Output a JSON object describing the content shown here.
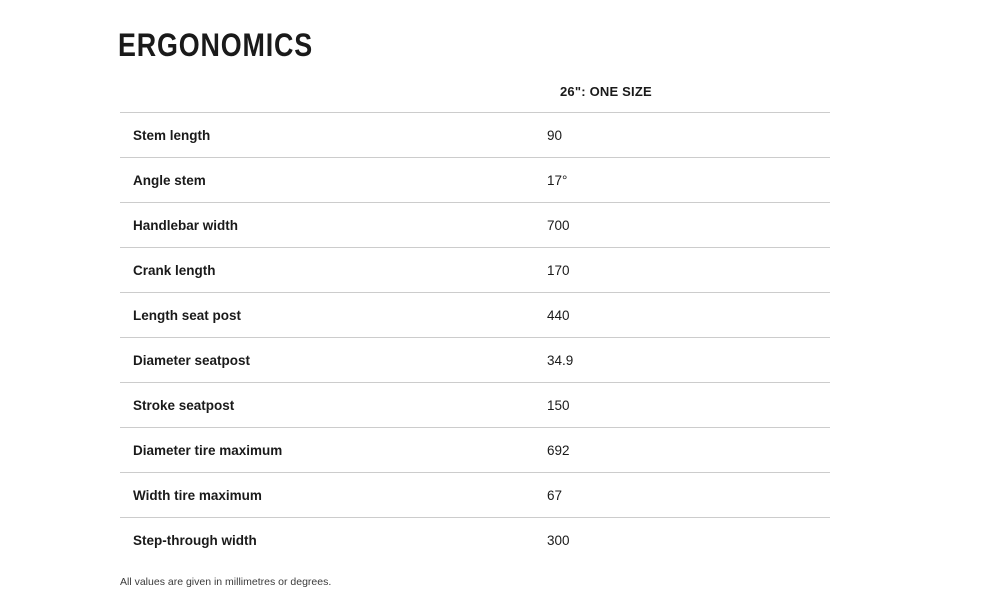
{
  "page": {
    "title": "ERGONOMICS",
    "footnote": "All values are given in millimetres or degrees."
  },
  "table": {
    "size_header": "26\": ONE SIZE",
    "rows": [
      {
        "label": "Stem length",
        "value": "90"
      },
      {
        "label": "Angle stem",
        "value": "17°"
      },
      {
        "label": "Handlebar width",
        "value": "700"
      },
      {
        "label": "Crank length",
        "value": "170"
      },
      {
        "label": "Length seat post",
        "value": "440"
      },
      {
        "label": "Diameter seatpost",
        "value": "34.9"
      },
      {
        "label": "Stroke seatpost",
        "value": "150"
      },
      {
        "label": "Diameter tire maximum",
        "value": "692"
      },
      {
        "label": "Width tire maximum",
        "value": "67"
      },
      {
        "label": "Step-through width",
        "value": "300"
      }
    ]
  },
  "colors": {
    "text": "#1a1a1a",
    "divider": "#cccccc",
    "footnote": "#3a3a3a"
  }
}
